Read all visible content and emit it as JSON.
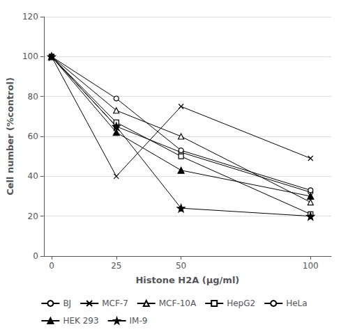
{
  "chart_data": {
    "type": "line",
    "x": [
      0,
      25,
      50,
      100
    ],
    "series": [
      {
        "name": "BJ",
        "color": "black",
        "marker": "circle_open",
        "values": [
          100,
          65,
          52,
          32
        ]
      },
      {
        "name": "MCF-7",
        "color": "black",
        "marker": "x",
        "values": [
          100,
          40,
          75,
          49
        ]
      },
      {
        "name": "MCF-10A",
        "color": "black",
        "marker": "triangle_open",
        "values": [
          100,
          73,
          60,
          27
        ]
      },
      {
        "name": "HepG2",
        "color": "black",
        "marker": "square_open",
        "values": [
          100,
          67,
          50,
          21
        ]
      },
      {
        "name": "HeLa",
        "color": "black",
        "marker": "circle_open",
        "values": [
          100,
          79,
          53,
          33
        ]
      },
      {
        "name": "HEK 293",
        "color": "black",
        "marker": "triangle",
        "values": [
          100,
          62,
          43,
          30
        ]
      },
      {
        "name": "IM-9",
        "color": "black",
        "marker": "star",
        "values": [
          100,
          65,
          24,
          20
        ]
      }
    ],
    "xlabel": "Histone H2A (μg/ml)",
    "ylabel": "Cell number (%control)",
    "xlim": [
      -3,
      108
    ],
    "ylim": [
      0,
      120
    ],
    "xticks": [
      0,
      25,
      50,
      100
    ],
    "yticks": [
      0,
      20,
      40,
      60,
      80,
      100,
      120
    ],
    "grid": true,
    "legend": "bottom"
  }
}
